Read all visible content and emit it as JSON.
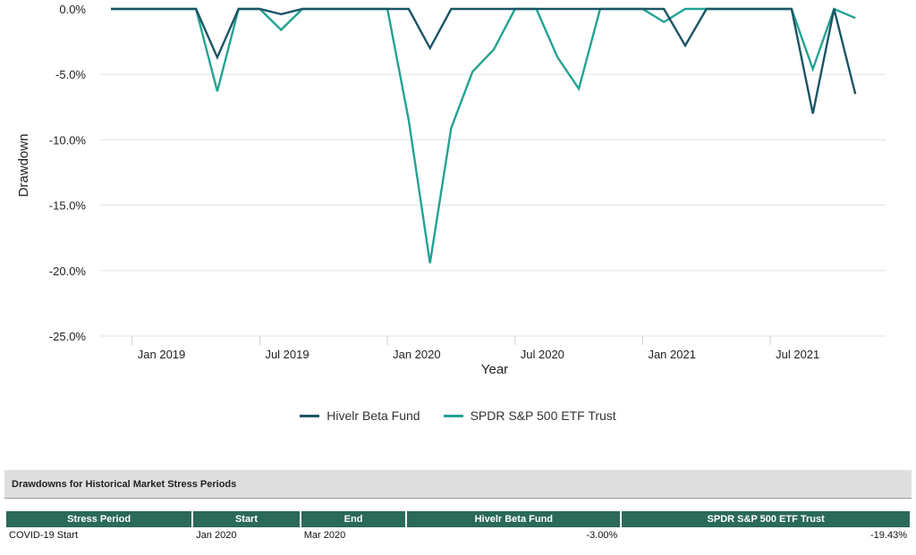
{
  "chart_data": {
    "type": "line",
    "xlabel": "Year",
    "ylabel": "Drawdown",
    "ylim": [
      -25,
      0
    ],
    "yticks": [
      0,
      -5,
      -10,
      -15,
      -20,
      -25
    ],
    "ytick_labels": [
      "0.0%",
      "-5.0%",
      "-10.0%",
      "-15.0%",
      "-20.0%",
      "-25.0%"
    ],
    "x_range": [
      "2018-12",
      "2021-12"
    ],
    "xticks": [
      "2019-01",
      "2019-07",
      "2020-01",
      "2020-07",
      "2021-01",
      "2021-07"
    ],
    "xtick_labels": [
      "Jan 2019",
      "Jul 2019",
      "Jan 2020",
      "Jul 2020",
      "Jan 2021",
      "Jul 2021"
    ],
    "x": [
      "2018-12",
      "2019-01",
      "2019-02",
      "2019-03",
      "2019-04",
      "2019-05",
      "2019-06",
      "2019-07",
      "2019-08",
      "2019-09",
      "2019-10",
      "2019-11",
      "2019-12",
      "2020-01",
      "2020-02",
      "2020-03",
      "2020-04",
      "2020-05",
      "2020-06",
      "2020-07",
      "2020-08",
      "2020-09",
      "2020-10",
      "2020-11",
      "2020-12",
      "2021-01",
      "2021-02",
      "2021-03",
      "2021-04",
      "2021-05",
      "2021-06",
      "2021-07",
      "2021-08",
      "2021-09",
      "2021-10",
      "2021-11",
      "2021-12"
    ],
    "grid": true,
    "legend_position": "bottom-center",
    "series": [
      {
        "name": "Hivelr Beta Fund",
        "color": "#1b5566",
        "values": [
          0,
          0,
          0,
          0,
          0,
          -3.7,
          0,
          0,
          -0.4,
          0,
          0,
          0,
          0,
          0,
          0,
          -3.0,
          0,
          0,
          0,
          0,
          0,
          0,
          0,
          0,
          0,
          0,
          0,
          -2.8,
          0,
          0,
          0,
          0,
          0,
          -8.0,
          0,
          -6.5,
          null
        ]
      },
      {
        "name": "SPDR S&P 500 ETF Trust",
        "color": "#23a393",
        "values": [
          0,
          0,
          0,
          0,
          0,
          -6.3,
          0,
          0,
          -1.6,
          0,
          0,
          0,
          0,
          0,
          -8.5,
          -19.43,
          -9.1,
          -4.8,
          -3.1,
          0,
          0,
          -3.7,
          -6.1,
          0,
          0,
          0,
          -1.0,
          0,
          0,
          0,
          0,
          0,
          0,
          -4.6,
          0,
          -0.7,
          null
        ]
      }
    ]
  },
  "stress": {
    "title": "Drawdowns for Historical Market Stress Periods",
    "columns": [
      "Stress Period",
      "Start",
      "End",
      "Hivelr Beta Fund",
      "SPDR S&P 500 ETF Trust"
    ],
    "rows": [
      [
        "COVID-19 Start",
        "Jan 2020",
        "Mar 2020",
        "-3.00%",
        "-19.43%"
      ]
    ]
  }
}
